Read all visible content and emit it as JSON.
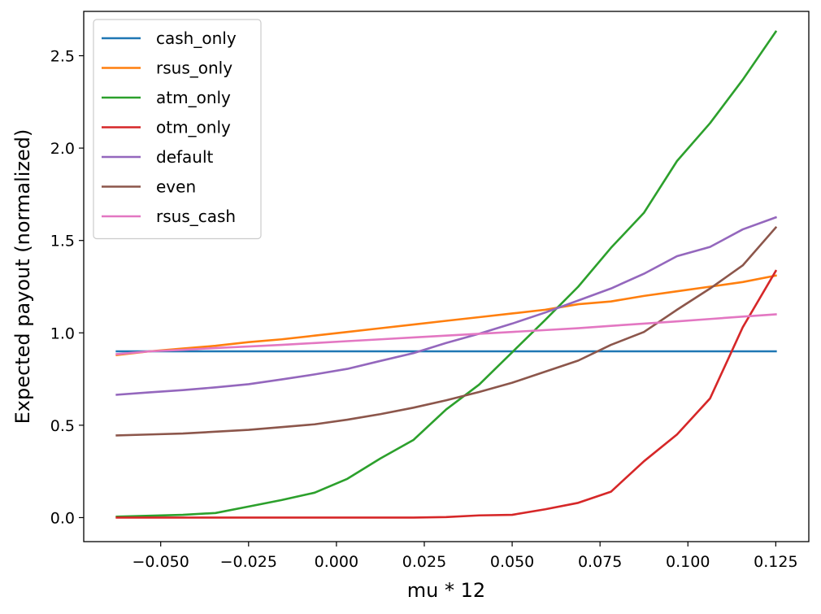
{
  "chart_data": {
    "type": "line",
    "title": "",
    "xlabel": "mu * 12",
    "ylabel": "Expected payout (normalized)",
    "xlim": [
      -0.0719,
      0.1344
    ],
    "ylim": [
      -0.13,
      2.74
    ],
    "xticks": [
      -0.05,
      -0.025,
      0.0,
      0.025,
      0.05,
      0.075,
      0.1,
      0.125
    ],
    "xtick_labels": [
      "−0.050",
      "−0.025",
      "0.000",
      "0.025",
      "0.050",
      "0.075",
      "0.100",
      "0.125"
    ],
    "yticks": [
      0.0,
      0.5,
      1.0,
      1.5,
      2.0,
      2.5
    ],
    "ytick_labels": [
      "0.0",
      "0.5",
      "1.0",
      "1.5",
      "2.0",
      "2.5"
    ],
    "grid": false,
    "legend_position": "top-left",
    "x": [
      -0.0625,
      -0.0531,
      -0.0437,
      -0.0344,
      -0.025,
      -0.0156,
      -0.0062,
      0.0031,
      0.0125,
      0.0219,
      0.0312,
      0.0406,
      0.05,
      0.0594,
      0.0688,
      0.0781,
      0.0875,
      0.0969,
      0.1063,
      0.1156,
      0.125
    ],
    "series": [
      {
        "name": "cash_only",
        "color": "#1f77b4",
        "values": [
          0.9,
          0.9,
          0.9,
          0.9,
          0.9,
          0.9,
          0.9,
          0.9,
          0.9,
          0.9,
          0.9,
          0.9,
          0.9,
          0.9,
          0.9,
          0.9,
          0.9,
          0.9,
          0.9,
          0.9,
          0.9
        ]
      },
      {
        "name": "rsus_only",
        "color": "#ff7f0e",
        "values": [
          0.88,
          0.9,
          0.915,
          0.93,
          0.95,
          0.965,
          0.985,
          1.005,
          1.025,
          1.045,
          1.065,
          1.085,
          1.105,
          1.125,
          1.155,
          1.17,
          1.2,
          1.225,
          1.25,
          1.275,
          1.31
        ]
      },
      {
        "name": "atm_only",
        "color": "#2ca02c",
        "values": [
          0.005,
          0.01,
          0.015,
          0.025,
          0.06,
          0.095,
          0.135,
          0.21,
          0.32,
          0.42,
          0.585,
          0.72,
          0.895,
          1.07,
          1.25,
          1.46,
          1.65,
          1.93,
          2.135,
          2.37,
          2.63
        ]
      },
      {
        "name": "otm_only",
        "color": "#d62728",
        "values": [
          0.0,
          0.0,
          0.0,
          0.0,
          0.0,
          0.0,
          0.0,
          0.0,
          0.0,
          0.0,
          0.003,
          0.012,
          0.015,
          0.045,
          0.08,
          0.14,
          0.305,
          0.45,
          0.645,
          1.03,
          1.335
        ]
      },
      {
        "name": "default",
        "color": "#9467bd",
        "values": [
          0.665,
          0.678,
          0.69,
          0.705,
          0.722,
          0.748,
          0.775,
          0.805,
          0.848,
          0.89,
          0.945,
          0.995,
          1.05,
          1.11,
          1.175,
          1.24,
          1.32,
          1.415,
          1.465,
          1.56,
          1.625
        ]
      },
      {
        "name": "even",
        "color": "#8c564b",
        "values": [
          0.445,
          0.45,
          0.455,
          0.465,
          0.475,
          0.49,
          0.505,
          0.53,
          0.56,
          0.595,
          0.635,
          0.68,
          0.73,
          0.79,
          0.85,
          0.935,
          1.005,
          1.125,
          1.24,
          1.365,
          1.57
        ]
      },
      {
        "name": "rsus_cash",
        "color": "#e377c2",
        "values": [
          0.885,
          0.9,
          0.908,
          0.918,
          0.926,
          0.935,
          0.945,
          0.955,
          0.965,
          0.975,
          0.985,
          0.995,
          1.005,
          1.015,
          1.025,
          1.038,
          1.05,
          1.062,
          1.075,
          1.088,
          1.1
        ]
      }
    ]
  }
}
